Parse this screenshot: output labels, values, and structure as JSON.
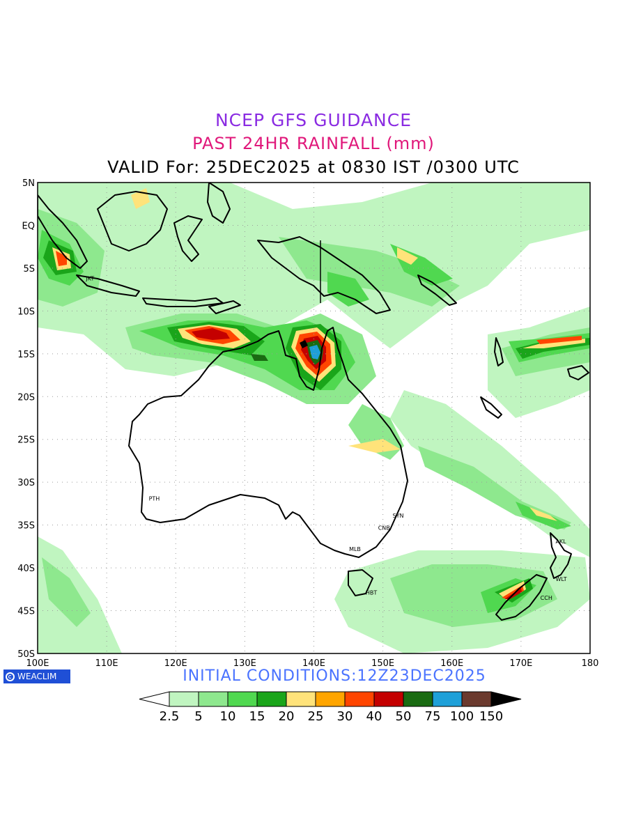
{
  "title": {
    "line1": "NCEP GFS GUIDANCE",
    "line2": "PAST 24HR RAINFALL (mm)",
    "line3": "VALID For: 25DEC2025 at 0830 IST /0300 UTC"
  },
  "map": {
    "lon_range": [
      100,
      180
    ],
    "lat_range": [
      -50,
      5
    ],
    "lat_ticks": [
      {
        "lat": 5,
        "label": "5N"
      },
      {
        "lat": 0,
        "label": "EQ"
      },
      {
        "lat": -5,
        "label": "5S"
      },
      {
        "lat": -10,
        "label": "10S"
      },
      {
        "lat": -15,
        "label": "15S"
      },
      {
        "lat": -20,
        "label": "20S"
      },
      {
        "lat": -25,
        "label": "25S"
      },
      {
        "lat": -30,
        "label": "30S"
      },
      {
        "lat": -35,
        "label": "35S"
      },
      {
        "lat": -40,
        "label": "40S"
      },
      {
        "lat": -45,
        "label": "45S"
      },
      {
        "lat": -50,
        "label": "50S"
      }
    ],
    "lon_ticks": [
      {
        "lon": 100,
        "label": "100E"
      },
      {
        "lon": 110,
        "label": "110E"
      },
      {
        "lon": 120,
        "label": "120E"
      },
      {
        "lon": 130,
        "label": "130E"
      },
      {
        "lon": 140,
        "label": "140E"
      },
      {
        "lon": 150,
        "label": "150E"
      },
      {
        "lon": 160,
        "label": "160E"
      },
      {
        "lon": 170,
        "label": "170E"
      },
      {
        "lon": 180,
        "label": "180"
      }
    ],
    "cities": [
      {
        "name": "JKT",
        "lon": 106.8,
        "lat": -6.2
      },
      {
        "name": "PTH",
        "lon": 115.9,
        "lat": -31.9
      },
      {
        "name": "SYN",
        "lon": 151.2,
        "lat": -33.9
      },
      {
        "name": "CNB",
        "lon": 149.1,
        "lat": -35.3
      },
      {
        "name": "MLB",
        "lon": 144.9,
        "lat": -37.8
      },
      {
        "name": "HBT",
        "lon": 147.3,
        "lat": -42.9
      },
      {
        "name": "AKL",
        "lon": 174.8,
        "lat": -36.9
      },
      {
        "name": "WLT",
        "lon": 174.8,
        "lat": -41.3
      },
      {
        "name": "CCH",
        "lon": 172.6,
        "lat": -43.5
      }
    ]
  },
  "logo_text": "WEACLIM",
  "initial_conditions": "INITIAL  CONDITIONS:12Z23DEC2025",
  "legend": {
    "colors": [
      "#ffffff",
      "#c0f5c0",
      "#8ee88e",
      "#50d850",
      "#1aa51a",
      "#ffe37a",
      "#ffa500",
      "#ff4500",
      "#c40000",
      "#1a6b12",
      "#1ea0d8",
      "#6b3a2e",
      "#000000"
    ],
    "labels": [
      "2.5",
      "5",
      "10",
      "15",
      "20",
      "25",
      "30",
      "40",
      "50",
      "75",
      "100",
      "150"
    ]
  }
}
